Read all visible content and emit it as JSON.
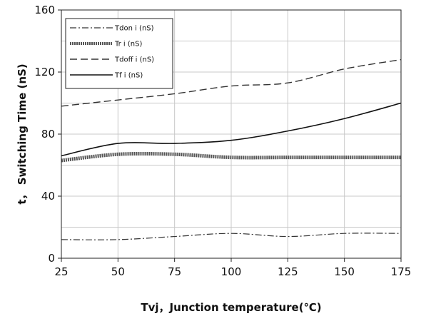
{
  "chart_data": {
    "type": "line",
    "title": "",
    "xlabel": "Tvj，Junction temperature(℃)",
    "ylabel": "t， Switching Time (nS)",
    "xlim": [
      25,
      175
    ],
    "ylim": [
      0,
      160
    ],
    "x_ticks": [
      "25",
      "50",
      "75",
      "100",
      "125",
      "150",
      "175"
    ],
    "y_ticks": [
      "0",
      "40",
      "80",
      "120",
      "160"
    ],
    "grid": true,
    "legend_position": "top-left",
    "x": [
      25,
      50,
      75,
      100,
      125,
      150,
      175
    ],
    "series": [
      {
        "name": "Tdon i (nS)",
        "style": "dash-dot",
        "color": "#333333",
        "values": [
          12,
          12,
          14,
          16,
          14,
          16,
          16
        ]
      },
      {
        "name": "Tr i (nS)",
        "style": "thick-hatched",
        "color": "#555555",
        "values": [
          63,
          67,
          67,
          65,
          65,
          65,
          65
        ]
      },
      {
        "name": "Tdoff i (nS)",
        "style": "dashed",
        "color": "#333333",
        "values": [
          98,
          102,
          106,
          111,
          113,
          122,
          128
        ]
      },
      {
        "name": "Tf i (nS)",
        "style": "solid",
        "color": "#111111",
        "values": [
          66,
          74,
          74,
          76,
          82,
          90,
          100
        ]
      }
    ]
  }
}
